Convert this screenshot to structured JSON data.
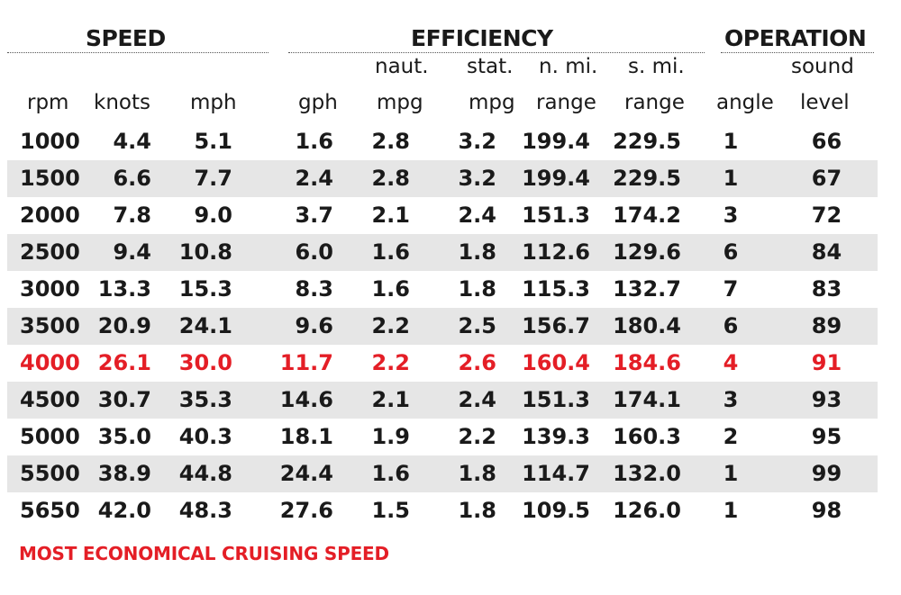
{
  "groups": {
    "speed": "SPEED",
    "efficiency": "EFFICIENCY",
    "operation": "OPERATION"
  },
  "headers": {
    "rpm": [
      "",
      "rpm"
    ],
    "knots": [
      "",
      "knots"
    ],
    "mph": [
      "",
      "mph"
    ],
    "gph": [
      "",
      "gph"
    ],
    "naut_mpg": [
      "naut.",
      "mpg"
    ],
    "stat_mpg": [
      "stat.",
      "mpg"
    ],
    "nmi_range": [
      "n. mi.",
      "range"
    ],
    "smi_range": [
      "s. mi.",
      "range"
    ],
    "angle": [
      "",
      "angle"
    ],
    "sound": [
      "sound",
      "level"
    ]
  },
  "rows": [
    [
      "1000",
      "4.4",
      "5.1",
      "1.6",
      "2.8",
      "3.2",
      "199.4",
      "229.5",
      "1",
      "66"
    ],
    [
      "1500",
      "6.6",
      "7.7",
      "2.4",
      "2.8",
      "3.2",
      "199.4",
      "229.5",
      "1",
      "67"
    ],
    [
      "2000",
      "7.8",
      "9.0",
      "3.7",
      "2.1",
      "2.4",
      "151.3",
      "174.2",
      "3",
      "72"
    ],
    [
      "2500",
      "9.4",
      "10.8",
      "6.0",
      "1.6",
      "1.8",
      "112.6",
      "129.6",
      "6",
      "84"
    ],
    [
      "3000",
      "13.3",
      "15.3",
      "8.3",
      "1.6",
      "1.8",
      "115.3",
      "132.7",
      "7",
      "83"
    ],
    [
      "3500",
      "20.9",
      "24.1",
      "9.6",
      "2.2",
      "2.5",
      "156.7",
      "180.4",
      "6",
      "89"
    ],
    [
      "4000",
      "26.1",
      "30.0",
      "11.7",
      "2.2",
      "2.6",
      "160.4",
      "184.6",
      "4",
      "91"
    ],
    [
      "4500",
      "30.7",
      "35.3",
      "14.6",
      "2.1",
      "2.4",
      "151.3",
      "174.1",
      "3",
      "93"
    ],
    [
      "5000",
      "35.0",
      "40.3",
      "18.1",
      "1.9",
      "2.2",
      "139.3",
      "160.3",
      "2",
      "95"
    ],
    [
      "5500",
      "38.9",
      "44.8",
      "24.4",
      "1.6",
      "1.8",
      "114.7",
      "132.0",
      "1",
      "99"
    ],
    [
      "5650",
      "42.0",
      "48.3",
      "27.6",
      "1.5",
      "1.8",
      "109.5",
      "126.0",
      "1",
      "98"
    ]
  ],
  "highlight_row_index": 6,
  "colors": {
    "highlight": "#e41e26",
    "row_shade": "#e6e6e6",
    "text": "#1a1a1a"
  },
  "footnote": "MOST ECONOMICAL CRUISING SPEED"
}
